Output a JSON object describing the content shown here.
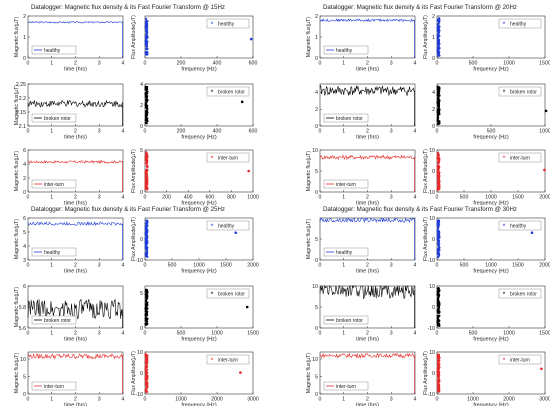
{
  "chart_data": [
    {
      "type": "line",
      "title": "Datalogger: Magnetic flux density & its Fast Fourier Transform @ 15Hz",
      "rows": [
        {
          "series_name": "healthy",
          "color": "#1f3fd6",
          "time": {
            "xlabel": "time (hrs)",
            "ylabel": "Magnetic flux(µT)",
            "xlim": [
              0,
              4
            ],
            "ylim": [
              0,
              2
            ],
            "yticks": [
              0,
              1,
              2
            ],
            "xticks": [
              0,
              1,
              2,
              3,
              4
            ],
            "level": 1.7,
            "noise": 0.02
          },
          "fft": {
            "xlabel": "frequency (Hz)",
            "ylabel": "Flux Amplitude(µT)",
            "xlim": [
              0,
              600
            ],
            "ylim": [
              0,
              2
            ],
            "yticks": [],
            "xticks": [
              0,
              200,
              400,
              600
            ],
            "spike_amp": 1.0,
            "outlier": [
              590,
              0.9
            ]
          }
        },
        {
          "series_name": "broken rotor",
          "color": "#000000",
          "time": {
            "xlabel": "time (hrs)",
            "ylabel": "Magnetic flux(µT)",
            "xlim": [
              0,
              4
            ],
            "ylim": [
              2.1,
              2.25
            ],
            "yticks": [
              2.1,
              2.15,
              2.2,
              2.25
            ],
            "xticks": [
              0,
              1,
              2,
              3,
              4
            ],
            "level": 2.18,
            "noise": 0.02
          },
          "fft": {
            "xlabel": "frequency (Hz)",
            "ylabel": "",
            "xlim": [
              0,
              600
            ],
            "ylim": [
              0,
              4
            ],
            "yticks": [
              0,
              2,
              4
            ],
            "xticks": [
              0,
              200,
              400,
              600
            ],
            "spike_amp": 3.6,
            "outlier": [
              540,
              2.3
            ]
          }
        },
        {
          "series_name": "inter-turn",
          "color": "#e52b2b",
          "time": {
            "xlabel": "time (hrs)",
            "ylabel": "Magnetic flux(µT)",
            "xlim": [
              0,
              4
            ],
            "ylim": [
              0,
              6
            ],
            "yticks": [
              0,
              2,
              4,
              6
            ],
            "xticks": [
              0,
              1,
              2,
              3,
              4
            ],
            "level": 4.3,
            "noise": 0.03
          },
          "fft": {
            "xlabel": "frequency (Hz)",
            "ylabel": "Flux Amplitude(µT)",
            "xlim": [
              0,
              1000
            ],
            "ylim": [
              0,
              5
            ],
            "yticks": [
              0,
              5
            ],
            "xticks": [
              0,
              200,
              400,
              600,
              800,
              1000
            ],
            "spike_amp": 4.4,
            "outlier": [
              960,
              2.5
            ]
          }
        }
      ]
    },
    {
      "type": "line",
      "title": "Datalogger: Magnetic flux density & its Fast Fourier Transform @ 20Hz",
      "rows": [
        {
          "series_name": "healthy",
          "color": "#1f3fd6",
          "time": {
            "xlabel": "time (hrs)",
            "ylabel": "Magnetic flux(µT)",
            "xlim": [
              0,
              4
            ],
            "ylim": [
              0,
              2
            ],
            "yticks": [
              0,
              1,
              2
            ],
            "xticks": [
              0,
              1,
              2,
              3,
              4
            ],
            "level": 1.8,
            "noise": 0.03
          },
          "fft": {
            "xlabel": "frequency (Hz)",
            "ylabel": "Flux Amplitude(µT)",
            "xlim": [
              0,
              1500
            ],
            "ylim": [
              0,
              2
            ],
            "yticks": [
              0,
              1,
              2
            ],
            "xticks": [
              0,
              500,
              1000,
              1500
            ],
            "spike_amp": 1.9,
            "outlier": [
              1380,
              1.6
            ]
          }
        },
        {
          "series_name": "broken rotor",
          "color": "#000000",
          "time": {
            "xlabel": "time (hrs)",
            "ylabel": "",
            "xlim": [
              0,
              4
            ],
            "ylim": [
              0,
              5
            ],
            "yticks": [
              0,
              2,
              4
            ],
            "xticks": [
              0,
              1,
              2,
              3,
              4
            ],
            "level": 4.2,
            "noise": 0.03
          },
          "fft": {
            "xlabel": "frequency (Hz)",
            "ylabel": "",
            "xlim": [
              0,
              1000
            ],
            "ylim": [
              0,
              5
            ],
            "yticks": [
              0,
              2,
              4
            ],
            "xticks": [
              0,
              500,
              1000
            ],
            "spike_amp": 4.8,
            "outlier": [
              1010,
              1.8
            ]
          }
        },
        {
          "series_name": "inter-turn",
          "color": "#e52b2b",
          "time": {
            "xlabel": "time (hrs)",
            "ylabel": "Magnetic flux(µT)",
            "xlim": [
              0,
              4
            ],
            "ylim": [
              0,
              10
            ],
            "yticks": [
              0,
              5,
              10
            ],
            "xticks": [
              0,
              1,
              2,
              3,
              4
            ],
            "level": 8.3,
            "noise": 0.05
          },
          "fft": {
            "xlabel": "frequency (Hz)",
            "ylabel": "Flux Amplitude(µT)",
            "xlim": [
              0,
              2000
            ],
            "ylim": [
              -10,
              10
            ],
            "yticks": [
              -10,
              0,
              10
            ],
            "xticks": [
              0,
              500,
              1000,
              1500,
              2000
            ],
            "spike_amp": 9.5,
            "outlier": [
              1990,
              0.5
            ]
          }
        }
      ]
    },
    {
      "type": "line",
      "title": "Datalogger: Magnetic flux density & its Fast Fourier Transform @ 25Hz",
      "rows": [
        {
          "series_name": "healthy",
          "color": "#1f3fd6",
          "time": {
            "xlabel": "time (hrs)",
            "ylabel": "Magnetic flux(µT)",
            "xlim": [
              0,
              4
            ],
            "ylim": [
              3,
              6
            ],
            "yticks": [
              3,
              4,
              5,
              6
            ],
            "xticks": [
              0,
              1,
              2,
              3,
              4
            ],
            "level": 5.6,
            "noise": 0.04
          },
          "fft": {
            "xlabel": "frequency (Hz)",
            "ylabel": "Flux Amplitude(µT)",
            "xlim": [
              0,
              2000
            ],
            "ylim": [
              -10,
              10
            ],
            "yticks": [
              -10,
              0
            ],
            "xticks": [
              0,
              500,
              1000,
              1500,
              2000
            ],
            "spike_amp": 9.0,
            "outlier": [
              1680,
              3.0
            ]
          }
        },
        {
          "series_name": "broken rotor",
          "color": "#000000",
          "time": {
            "xlabel": "time (hrs)",
            "ylabel": "Magnetic flux(µT)",
            "xlim": [
              0,
              4
            ],
            "ylim": [
              5.6,
              6.0
            ],
            "yticks": [
              5.6,
              5.8,
              6.0
            ],
            "xticks": [
              0,
              1,
              2,
              3,
              4
            ],
            "level": 5.78,
            "noise": 0.06
          },
          "fft": {
            "xlabel": "frequency (Hz)",
            "ylabel": "",
            "xlim": [
              0,
              1500
            ],
            "ylim": [
              0,
              6
            ],
            "yticks": [
              0,
              5
            ],
            "xticks": [
              0,
              500,
              1000,
              1500
            ],
            "spike_amp": 5.5,
            "outlier": [
              1420,
              3.0
            ]
          }
        },
        {
          "series_name": "inter-turn",
          "color": "#e52b2b",
          "time": {
            "xlabel": "time (hrs)",
            "ylabel": "Magnetic flux(µT)",
            "xlim": [
              0,
              4
            ],
            "ylim": [
              0,
              12
            ],
            "yticks": [
              0,
              5,
              10
            ],
            "xticks": [
              0,
              1,
              2,
              3,
              4
            ],
            "level": 10.8,
            "noise": 0.06
          },
          "fft": {
            "xlabel": "frequency (Hz)",
            "ylabel": "Flux Amplitude(µT)",
            "xlim": [
              0,
              3000
            ],
            "ylim": [
              -10,
              10
            ],
            "yticks": [
              -10,
              0,
              10
            ],
            "xticks": [
              0,
              1000,
              2000,
              3000
            ],
            "spike_amp": 9.5,
            "outlier": [
              2650,
              0.2
            ]
          }
        }
      ]
    },
    {
      "type": "line",
      "title": "Datalogger: Magnetic flux density & its Fast Fourier Transform @ 30Hz",
      "rows": [
        {
          "series_name": "healthy",
          "color": "#1f3fd6",
          "time": {
            "xlabel": "time (hrs)",
            "ylabel": "Magnetic flux(µT)",
            "xlim": [
              0,
              4
            ],
            "ylim": [
              0,
              10
            ],
            "yticks": [
              0,
              5
            ],
            "xticks": [
              0,
              1,
              2,
              3,
              4
            ],
            "level": 9.5,
            "noise": 0.05
          },
          "fft": {
            "xlabel": "frequency (Hz)",
            "ylabel": "Flux Amplitude(µT)",
            "xlim": [
              0,
              2000
            ],
            "ylim": [
              -10,
              10
            ],
            "yticks": [
              -10,
              0,
              10
            ],
            "xticks": [
              0,
              500,
              1000,
              1500,
              2000
            ],
            "spike_amp": 9.5,
            "outlier": [
              1760,
              3.0
            ]
          }
        },
        {
          "series_name": "broken rotor",
          "color": "#000000",
          "time": {
            "xlabel": "time (hrs)",
            "ylabel": "",
            "xlim": [
              0,
              4
            ],
            "ylim": [
              0,
              10
            ],
            "yticks": [
              0,
              5,
              10
            ],
            "xticks": [
              0,
              1,
              2,
              3,
              4
            ],
            "level": 9.0,
            "noise": 0.05
          },
          "fft": {
            "xlabel": "frequency (Hz)",
            "ylabel": "",
            "xlim": [
              0,
              1500
            ],
            "ylim": [
              -10,
              10
            ],
            "yticks": [
              -10,
              0,
              10
            ],
            "xticks": [
              0,
              500,
              1000,
              1500
            ],
            "spike_amp": 9.0,
            "outlier": [
              1420,
              6.0
            ]
          }
        },
        {
          "series_name": "inter-turn",
          "color": "#e52b2b",
          "time": {
            "xlabel": "time (hrs)",
            "ylabel": "Magnetic flux(µT)",
            "xlim": [
              0,
              4
            ],
            "ylim": [
              0,
              12
            ],
            "yticks": [
              0,
              5,
              10
            ],
            "xticks": [
              0,
              1,
              2,
              3,
              4
            ],
            "level": 11.0,
            "noise": 0.05
          },
          "fft": {
            "xlabel": "frequency (Hz)",
            "ylabel": "Flux Amplitude(µT)",
            "xlim": [
              0,
              3000
            ],
            "ylim": [
              -10,
              10
            ],
            "yticks": [
              -10,
              0,
              10
            ],
            "xticks": [
              0,
              1000,
              2000,
              3000
            ],
            "spike_amp": 9.5,
            "outlier": [
              2900,
              2.0
            ]
          }
        }
      ]
    }
  ]
}
